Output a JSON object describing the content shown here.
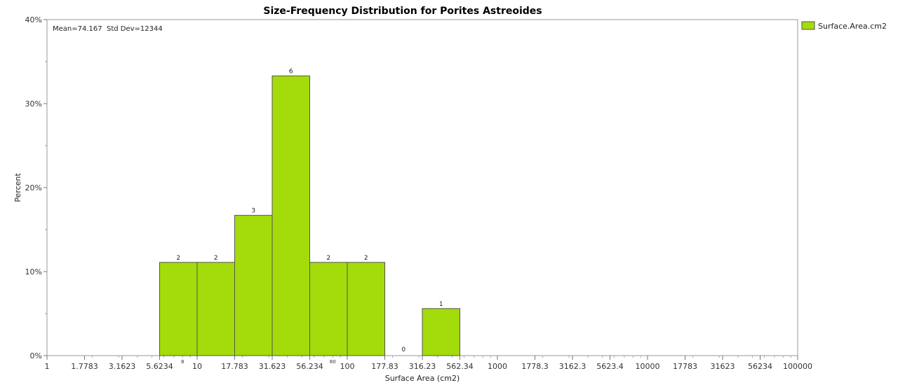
{
  "chart_data": {
    "type": "bar",
    "title": "Size-Frequency Distribution for Porites Astreoides",
    "xlabel": "Surface Area (cm2)",
    "ylabel": "Percent",
    "x_scale": "log",
    "xlim": [
      1,
      100000
    ],
    "ylim": [
      0,
      40
    ],
    "y_ticks": [
      "0%",
      "10%",
      "20%",
      "30%",
      "40%"
    ],
    "x_tick_labels": [
      "1",
      "1.7783",
      "3.1623",
      "5.6234",
      "10",
      "17.783",
      "31.623",
      "56.234",
      "100",
      "177.83",
      "316.23",
      "562.34",
      "1000",
      "1778.3",
      "3162.3",
      "5623.4",
      "10000",
      "17783",
      "31623",
      "56234",
      "100000"
    ],
    "extra_x_labels": [
      {
        "text": "8",
        "at": 8
      },
      {
        "text": "80",
        "at": 80
      }
    ],
    "stats_text": "Mean=74.167  Std Dev=12344",
    "legend": [
      {
        "label": "Surface.Area.cm2",
        "color": "#a3dc0a"
      }
    ],
    "bin_edges": [
      5.6234,
      10,
      17.783,
      31.623,
      56.234,
      100,
      177.83,
      316.23,
      562.34
    ],
    "counts": [
      2,
      2,
      3,
      6,
      2,
      2,
      0,
      1
    ],
    "percent": [
      11.1,
      11.1,
      16.7,
      33.3,
      11.1,
      11.1,
      0,
      5.6
    ],
    "bar_color": "#a3dc0a",
    "grid": false,
    "legend_position": "top-right"
  }
}
